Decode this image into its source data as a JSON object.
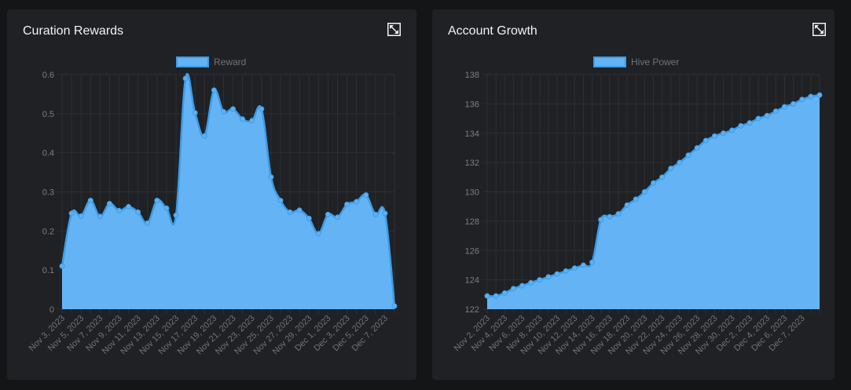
{
  "colors": {
    "page_background": "#141517",
    "panel_background": "#1f2124",
    "grid": "#2c2f33",
    "series_fill": "#64b4f5",
    "series_line": "#3b9de8",
    "point_fill": "#5db0f2"
  },
  "panels": [
    {
      "title": "Curation Rewards",
      "expand_icon": "expand-icon"
    },
    {
      "title": "Account Growth",
      "expand_icon": "expand-icon"
    }
  ],
  "chart_data": [
    {
      "type": "area",
      "legend": "Reward",
      "legend_position": "top-center",
      "grid": true,
      "ylim": [
        0,
        0.6
      ],
      "yticks": [
        "0.6",
        "0.5",
        "0.4",
        "0.3",
        "0.2",
        "0.1",
        "0"
      ],
      "xtick_labels": [
        "Nov 3, 2023",
        "Nov 5, 2023",
        "Nov 7, 2023",
        "Nov 9, 2023",
        "Nov 11, 2023",
        "Nov 13, 2023",
        "Nov 15, 2023",
        "Nov 17, 2023",
        "Nov 19, 2023",
        "Nov 21, 2023",
        "Nov 23, 2023",
        "Nov 25, 2023",
        "Nov 27, 2023",
        "Nov 29, 2023",
        "Dec 1, 2023",
        "Dec 3, 2023",
        "Dec 5, 2023",
        "Dec 7, 2023"
      ],
      "series": [
        {
          "name": "Reward",
          "values": [
            0.11,
            0.245,
            0.238,
            0.278,
            0.237,
            0.27,
            0.252,
            0.262,
            0.248,
            0.22,
            0.278,
            0.258,
            0.24,
            0.59,
            0.502,
            0.443,
            0.56,
            0.505,
            0.512,
            0.486,
            0.482,
            0.512,
            0.338,
            0.278,
            0.248,
            0.253,
            0.232,
            0.193,
            0.242,
            0.235,
            0.268,
            0.275,
            0.292,
            0.242,
            0.245,
            0.008
          ]
        }
      ]
    },
    {
      "type": "area",
      "legend": "Hive Power",
      "legend_position": "top-center",
      "grid": true,
      "ylim": [
        122,
        138
      ],
      "yticks": [
        "138",
        "136",
        "134",
        "132",
        "130",
        "128",
        "126",
        "124",
        "122"
      ],
      "xtick_labels": [
        "Nov 2, 2023",
        "Nov 4, 2023",
        "Nov 6, 2023",
        "Nov 8, 2023",
        "Nov 10, 2023",
        "Nov 12, 2023",
        "Nov 14, 2023",
        "Nov 16, 2023",
        "Nov 18, 2023",
        "Nov 20, 2023",
        "Nov 22, 2023",
        "Nov 24, 2023",
        "Nov 26, 2023",
        "Nov 28, 2023",
        "Nov 30, 2023",
        "Dec 2, 2023",
        "Dec 4, 2023",
        "Dec 6, 2023",
        "Dec 7, 2023"
      ],
      "series": [
        {
          "name": "Hive Power",
          "values": [
            122.9,
            122.9,
            123.1,
            123.4,
            123.6,
            123.8,
            124.0,
            124.2,
            124.4,
            124.6,
            124.8,
            125.0,
            125.2,
            128.1,
            128.3,
            128.5,
            129.1,
            129.5,
            130.0,
            130.6,
            131.0,
            131.6,
            132.0,
            132.5,
            133.0,
            133.5,
            133.8,
            134.0,
            134.2,
            134.5,
            134.7,
            135.0,
            135.2,
            135.5,
            135.8,
            136.0,
            136.3,
            136.5,
            136.6
          ]
        }
      ]
    }
  ]
}
